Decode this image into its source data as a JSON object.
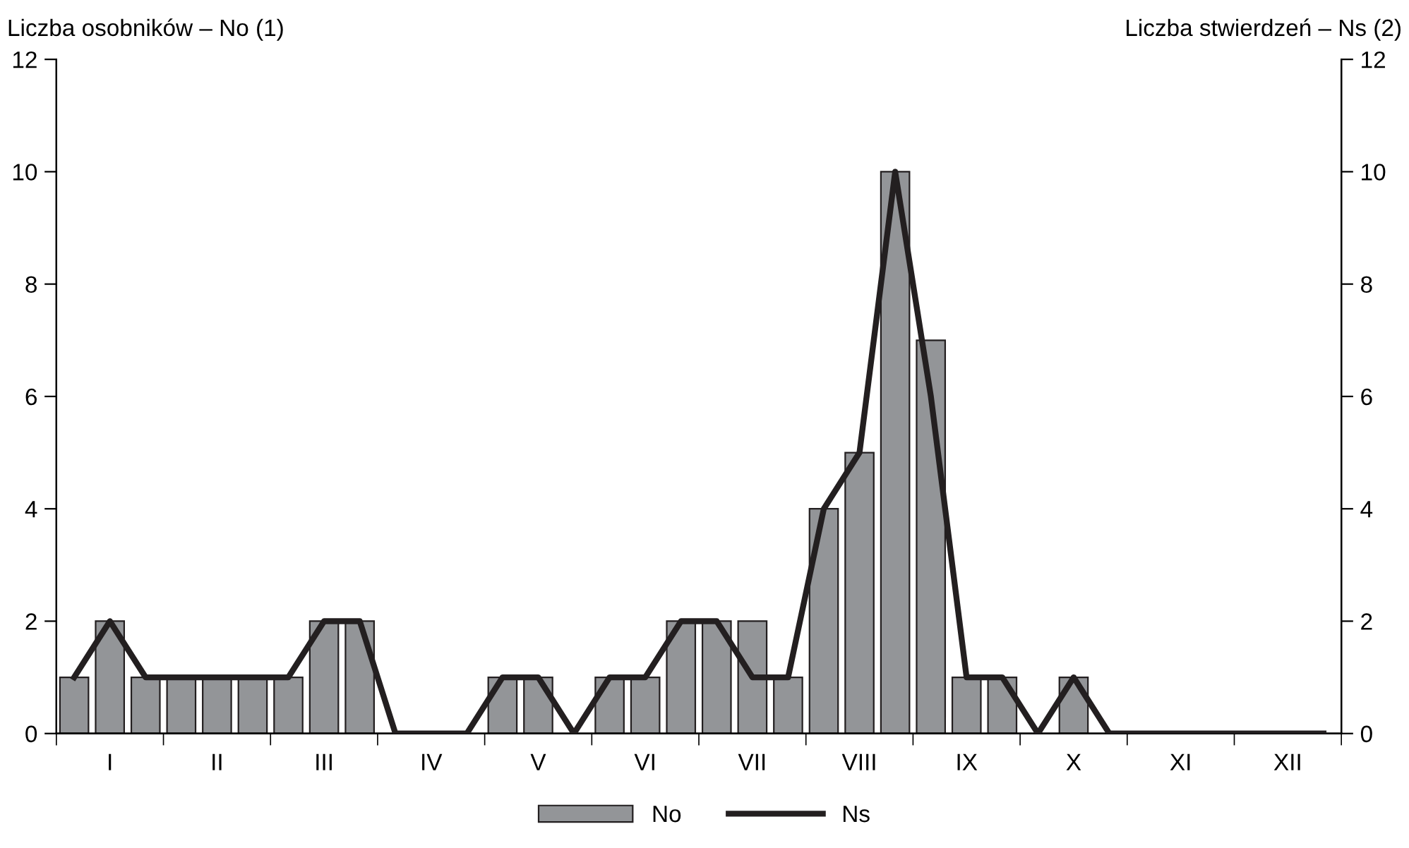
{
  "chart_data": {
    "type": "bar",
    "categories": [
      null,
      "I",
      null,
      null,
      "II",
      null,
      null,
      "III",
      null,
      null,
      "IV",
      null,
      null,
      "V",
      null,
      null,
      "VI",
      null,
      null,
      "VII",
      null,
      null,
      "VIII",
      null,
      null,
      "IX",
      null,
      null,
      "X",
      null,
      null,
      "XI",
      null,
      null,
      "XII",
      null
    ],
    "series": [
      {
        "name": "No",
        "color": "#939598",
        "values": [
          1,
          2,
          1,
          1,
          1,
          1,
          1,
          2,
          2,
          0,
          0,
          0,
          1,
          1,
          0,
          1,
          1,
          2,
          2,
          2,
          1,
          4,
          5,
          10,
          7,
          1,
          1,
          0,
          1,
          0,
          0,
          0,
          0,
          0,
          0,
          0
        ]
      },
      {
        "name": "Ns",
        "type": "line",
        "axis": "y2",
        "color": "#231f20",
        "values": [
          1,
          2,
          1,
          1,
          1,
          1,
          1,
          2,
          2,
          0,
          0,
          0,
          1,
          1,
          0,
          1,
          1,
          2,
          2,
          1,
          1,
          4,
          5,
          10,
          6,
          1,
          1,
          0,
          1,
          0,
          0,
          0,
          0,
          0,
          0,
          0
        ]
      }
    ],
    "ylabel": "Liczba osobników – No (1)",
    "y2label": "Liczba stwierdzeń – Ns (2)",
    "ylim": [
      0,
      12
    ],
    "yticks": [
      0,
      2,
      4,
      6,
      8,
      10,
      12
    ],
    "y2lim": [
      0,
      12
    ],
    "y2ticks": [
      0,
      2,
      4,
      6,
      8,
      10,
      12
    ],
    "legend": "bottom",
    "grid": false,
    "marker": "none",
    "line_style": "solid"
  }
}
